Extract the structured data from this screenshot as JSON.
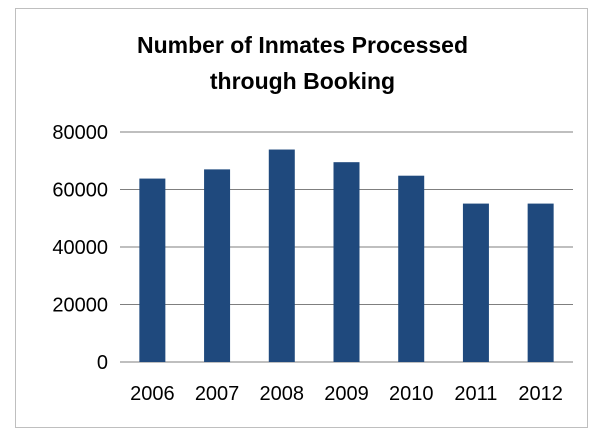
{
  "chart_data": {
    "type": "bar",
    "title_lines": [
      "Number of Inmates Processed",
      "through Booking"
    ],
    "categories": [
      "2006",
      "2007",
      "2008",
      "2009",
      "2010",
      "2011",
      "2012"
    ],
    "values": [
      63800,
      67000,
      73900,
      69500,
      64800,
      55100,
      55100
    ],
    "yticks": [
      "0",
      "20000",
      "40000",
      "60000",
      "80000"
    ],
    "ylim": [
      0,
      80000
    ],
    "xlabel": "",
    "ylabel": "",
    "grid": true,
    "legend": "none",
    "bar_color": "#1f497d",
    "grid_color": "#7f7f7f"
  }
}
